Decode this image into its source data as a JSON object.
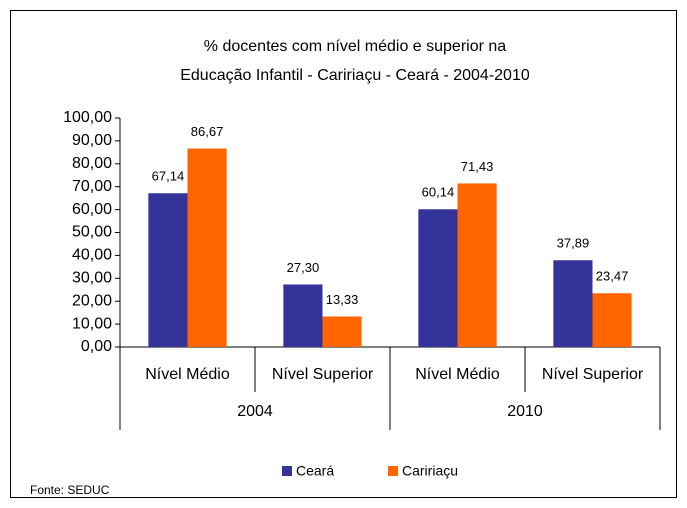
{
  "chart_data": {
    "type": "bar",
    "title": [
      "% docentes com nível médio e superior na",
      "Educação Infantil - Caririaçu -  Ceará - 2004-2010"
    ],
    "groups": [
      {
        "name": "2004",
        "categories": [
          "Nível Médio",
          "Nível Superior"
        ]
      },
      {
        "name": "2010",
        "categories": [
          "Nível Médio",
          "Nível Superior"
        ]
      }
    ],
    "series": [
      {
        "name": "Ceará",
        "color": "#333399",
        "values": [
          67.14,
          27.3,
          60.14,
          37.89
        ],
        "value_labels": [
          "67,14",
          "27,30",
          "60,14",
          "37,89"
        ]
      },
      {
        "name": "Caririaçu",
        "color": "#ff6600",
        "values": [
          86.67,
          13.33,
          71.43,
          23.47
        ],
        "value_labels": [
          "86,67",
          "13,33",
          "71,43",
          "23,47"
        ]
      }
    ],
    "ylim": [
      0,
      100
    ],
    "yticks": [
      {
        "value": 0,
        "label": "0,00"
      },
      {
        "value": 10,
        "label": "10,00"
      },
      {
        "value": 20,
        "label": "20,00"
      },
      {
        "value": 30,
        "label": "30,00"
      },
      {
        "value": 40,
        "label": "40,00"
      },
      {
        "value": 50,
        "label": "50,00"
      },
      {
        "value": 60,
        "label": "60,00"
      },
      {
        "value": 70,
        "label": "70,00"
      },
      {
        "value": 80,
        "label": "80,00"
      },
      {
        "value": 90,
        "label": "90,00"
      },
      {
        "value": 100,
        "label": "100,00"
      }
    ],
    "legend": "bottom",
    "source": "Fonte: SEDUC"
  }
}
